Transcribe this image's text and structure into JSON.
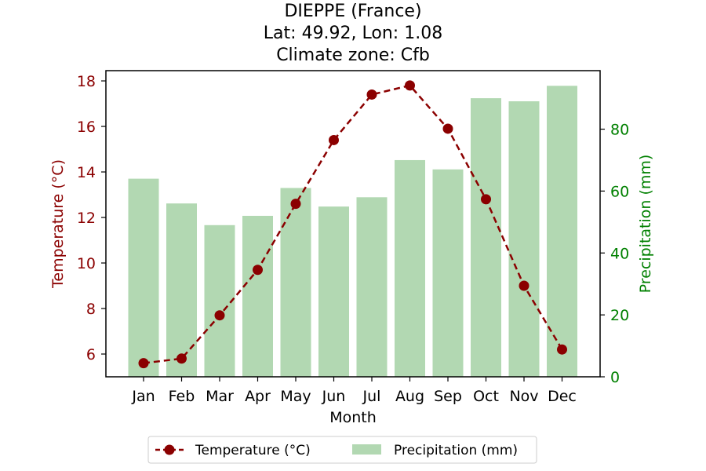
{
  "chart_data": {
    "type": "bar",
    "title_lines": [
      "DIEPPE (France)",
      "Lat: 49.92, Lon: 1.08",
      "Climate zone: Cfb"
    ],
    "xlabel": "Month",
    "categories": [
      "Jan",
      "Feb",
      "Mar",
      "Apr",
      "May",
      "Jun",
      "Jul",
      "Aug",
      "Sep",
      "Oct",
      "Nov",
      "Dec"
    ],
    "y_left": {
      "label": "Temperature (°C)",
      "range": [
        5.0,
        18.45
      ],
      "ticks": [
        6,
        8,
        10,
        12,
        14,
        16,
        18
      ],
      "color": "#8b0000"
    },
    "y_right": {
      "label": "Precipitation (mm)",
      "range": [
        0,
        98.9
      ],
      "ticks": [
        0,
        20,
        40,
        60,
        80
      ],
      "color": "#008000"
    },
    "series": [
      {
        "name": "Temperature (°C)",
        "type": "line",
        "axis": "left",
        "style": "dashed line with circle markers",
        "color": "#8b0000",
        "values": [
          5.6,
          5.8,
          7.7,
          9.7,
          12.6,
          15.4,
          17.4,
          17.8,
          15.9,
          12.8,
          9.0,
          6.2
        ]
      },
      {
        "name": "Precipitation (mm)",
        "type": "bar",
        "axis": "right",
        "color": "#b2d8b2",
        "values": [
          64,
          56,
          49,
          52,
          61,
          55,
          58,
          70,
          67,
          90,
          89,
          94
        ]
      }
    ],
    "grid": false,
    "legend_position": "bottom-center"
  }
}
